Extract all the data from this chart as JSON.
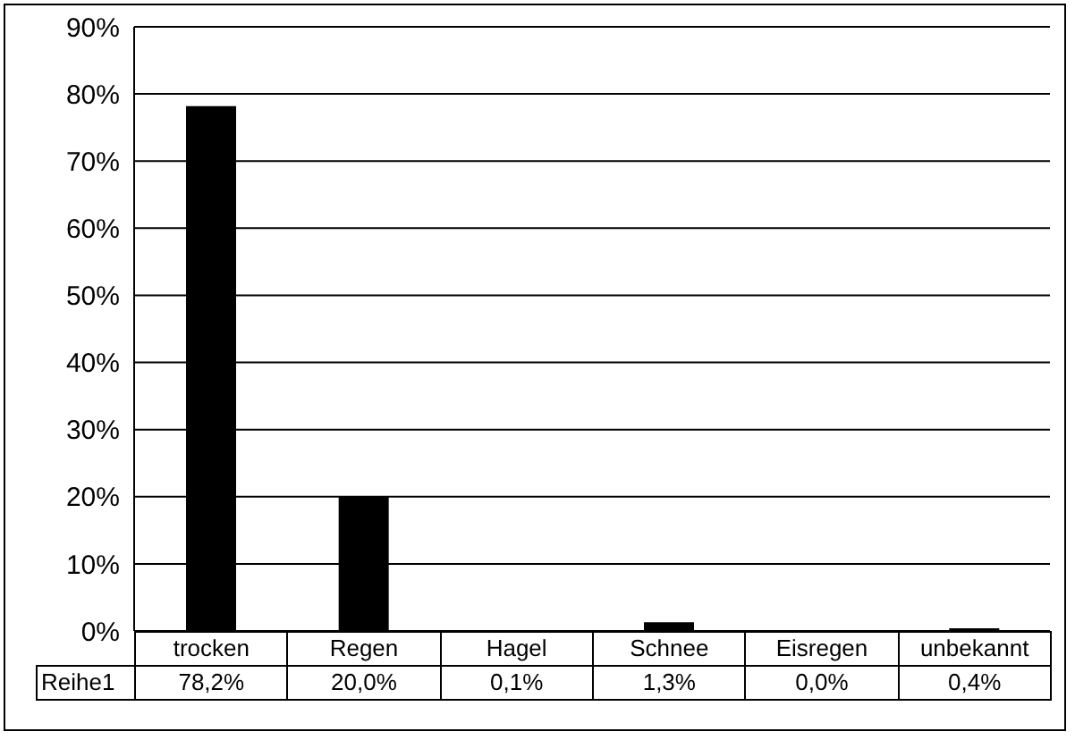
{
  "chart_data": {
    "type": "bar",
    "categories": [
      "trocken",
      "Regen",
      "Hagel",
      "Schnee",
      "Eisregen",
      "unbekannt"
    ],
    "series": [
      {
        "name": "Reihe1",
        "color": "#000000",
        "values": [
          78.2,
          20.0,
          0.1,
          1.3,
          0.0,
          0.4
        ],
        "value_labels": [
          "78,2%",
          "20,0%",
          "0,1%",
          "1,3%",
          "0,0%",
          "0,4%"
        ]
      }
    ],
    "ylim": [
      0,
      90
    ],
    "yticks": [
      {
        "value": 0,
        "label": "0%"
      },
      {
        "value": 10,
        "label": "10%"
      },
      {
        "value": 20,
        "label": "20%"
      },
      {
        "value": 30,
        "label": "30%"
      },
      {
        "value": 40,
        "label": "40%"
      },
      {
        "value": 50,
        "label": "50%"
      },
      {
        "value": 60,
        "label": "60%"
      },
      {
        "value": 70,
        "label": "70%"
      },
      {
        "value": 80,
        "label": "80%"
      },
      {
        "value": 90,
        "label": "90%"
      }
    ],
    "grid": "y"
  }
}
